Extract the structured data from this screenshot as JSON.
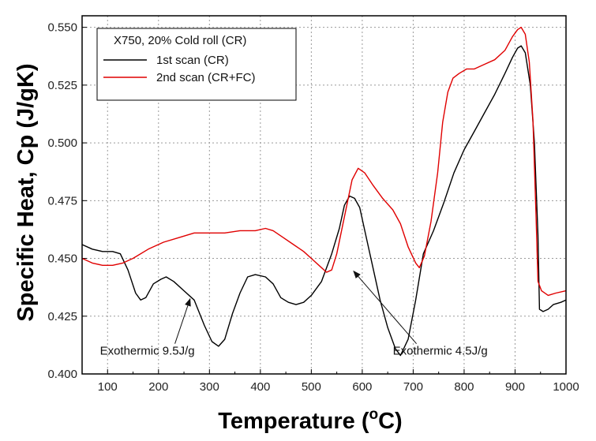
{
  "chart_data": {
    "type": "line",
    "xlabel": "Temperature (",
    "xlabel_unit_sup": "o",
    "xlabel_unit": "C)",
    "ylabel": "Specific Heat, Cp (J/gK)",
    "xlim": [
      50,
      1000
    ],
    "ylim": [
      0.4,
      0.555
    ],
    "xticks": [
      "100",
      "200",
      "300",
      "400",
      "500",
      "600",
      "700",
      "800",
      "900",
      "1000"
    ],
    "yticks": [
      "0.400",
      "0.425",
      "0.450",
      "0.475",
      "0.500",
      "0.525",
      "0.550"
    ],
    "grid": true,
    "legend": {
      "position": "top-left",
      "title": "X750, 20% Cold roll (CR)"
    },
    "series": [
      {
        "name": "1st scan (CR)",
        "color": "#000000",
        "points": [
          [
            50,
            0.456
          ],
          [
            70,
            0.454
          ],
          [
            90,
            0.453
          ],
          [
            110,
            0.453
          ],
          [
            125,
            0.452
          ],
          [
            140,
            0.445
          ],
          [
            155,
            0.435
          ],
          [
            165,
            0.432
          ],
          [
            175,
            0.433
          ],
          [
            190,
            0.439
          ],
          [
            205,
            0.441
          ],
          [
            215,
            0.442
          ],
          [
            230,
            0.44
          ],
          [
            250,
            0.436
          ],
          [
            270,
            0.432
          ],
          [
            290,
            0.421
          ],
          [
            305,
            0.414
          ],
          [
            318,
            0.412
          ],
          [
            330,
            0.415
          ],
          [
            345,
            0.426
          ],
          [
            360,
            0.435
          ],
          [
            375,
            0.442
          ],
          [
            390,
            0.443
          ],
          [
            410,
            0.442
          ],
          [
            425,
            0.439
          ],
          [
            440,
            0.433
          ],
          [
            455,
            0.431
          ],
          [
            470,
            0.43
          ],
          [
            485,
            0.431
          ],
          [
            500,
            0.434
          ],
          [
            520,
            0.44
          ],
          [
            540,
            0.452
          ],
          [
            555,
            0.463
          ],
          [
            565,
            0.473
          ],
          [
            575,
            0.477
          ],
          [
            585,
            0.476
          ],
          [
            595,
            0.472
          ],
          [
            605,
            0.462
          ],
          [
            620,
            0.447
          ],
          [
            635,
            0.432
          ],
          [
            650,
            0.42
          ],
          [
            665,
            0.411
          ],
          [
            675,
            0.408
          ],
          [
            690,
            0.415
          ],
          [
            705,
            0.432
          ],
          [
            720,
            0.452
          ],
          [
            740,
            0.462
          ],
          [
            760,
            0.474
          ],
          [
            780,
            0.487
          ],
          [
            800,
            0.497
          ],
          [
            820,
            0.505
          ],
          [
            840,
            0.513
          ],
          [
            860,
            0.521
          ],
          [
            880,
            0.53
          ],
          [
            895,
            0.537
          ],
          [
            905,
            0.541
          ],
          [
            912,
            0.542
          ],
          [
            920,
            0.539
          ],
          [
            930,
            0.525
          ],
          [
            938,
            0.5
          ],
          [
            945,
            0.46
          ],
          [
            948,
            0.428
          ],
          [
            955,
            0.427
          ],
          [
            965,
            0.428
          ],
          [
            975,
            0.43
          ],
          [
            990,
            0.431
          ],
          [
            1000,
            0.432
          ]
        ]
      },
      {
        "name": "2nd scan (CR+FC)",
        "color": "#e00000",
        "points": [
          [
            50,
            0.45
          ],
          [
            70,
            0.448
          ],
          [
            90,
            0.447
          ],
          [
            110,
            0.447
          ],
          [
            130,
            0.448
          ],
          [
            150,
            0.45
          ],
          [
            180,
            0.454
          ],
          [
            210,
            0.457
          ],
          [
            240,
            0.459
          ],
          [
            270,
            0.461
          ],
          [
            300,
            0.461
          ],
          [
            330,
            0.461
          ],
          [
            360,
            0.462
          ],
          [
            390,
            0.462
          ],
          [
            410,
            0.463
          ],
          [
            425,
            0.462
          ],
          [
            445,
            0.459
          ],
          [
            465,
            0.456
          ],
          [
            485,
            0.453
          ],
          [
            505,
            0.449
          ],
          [
            520,
            0.446
          ],
          [
            530,
            0.444
          ],
          [
            540,
            0.445
          ],
          [
            550,
            0.452
          ],
          [
            565,
            0.468
          ],
          [
            580,
            0.484
          ],
          [
            592,
            0.489
          ],
          [
            605,
            0.487
          ],
          [
            620,
            0.482
          ],
          [
            640,
            0.476
          ],
          [
            660,
            0.471
          ],
          [
            675,
            0.465
          ],
          [
            690,
            0.455
          ],
          [
            705,
            0.448
          ],
          [
            712,
            0.446
          ],
          [
            722,
            0.451
          ],
          [
            735,
            0.466
          ],
          [
            748,
            0.487
          ],
          [
            758,
            0.509
          ],
          [
            768,
            0.522
          ],
          [
            778,
            0.528
          ],
          [
            790,
            0.53
          ],
          [
            805,
            0.532
          ],
          [
            820,
            0.532
          ],
          [
            840,
            0.534
          ],
          [
            860,
            0.536
          ],
          [
            880,
            0.54
          ],
          [
            895,
            0.546
          ],
          [
            905,
            0.549
          ],
          [
            912,
            0.55
          ],
          [
            920,
            0.547
          ],
          [
            928,
            0.535
          ],
          [
            935,
            0.51
          ],
          [
            941,
            0.47
          ],
          [
            945,
            0.44
          ],
          [
            952,
            0.436
          ],
          [
            965,
            0.434
          ],
          [
            980,
            0.435
          ],
          [
            1000,
            0.436
          ]
        ]
      }
    ],
    "annotations": [
      {
        "text": "Exothermic 9.5J/g",
        "x": 85,
        "y": 0.4083,
        "arrow_to_x": 262,
        "arrow_to_y": 0.4325
      },
      {
        "text": "Exothermic 4.5J/g",
        "x": 660,
        "y": 0.4083,
        "arrow_to_x": 583,
        "arrow_to_y": 0.4445
      }
    ]
  }
}
